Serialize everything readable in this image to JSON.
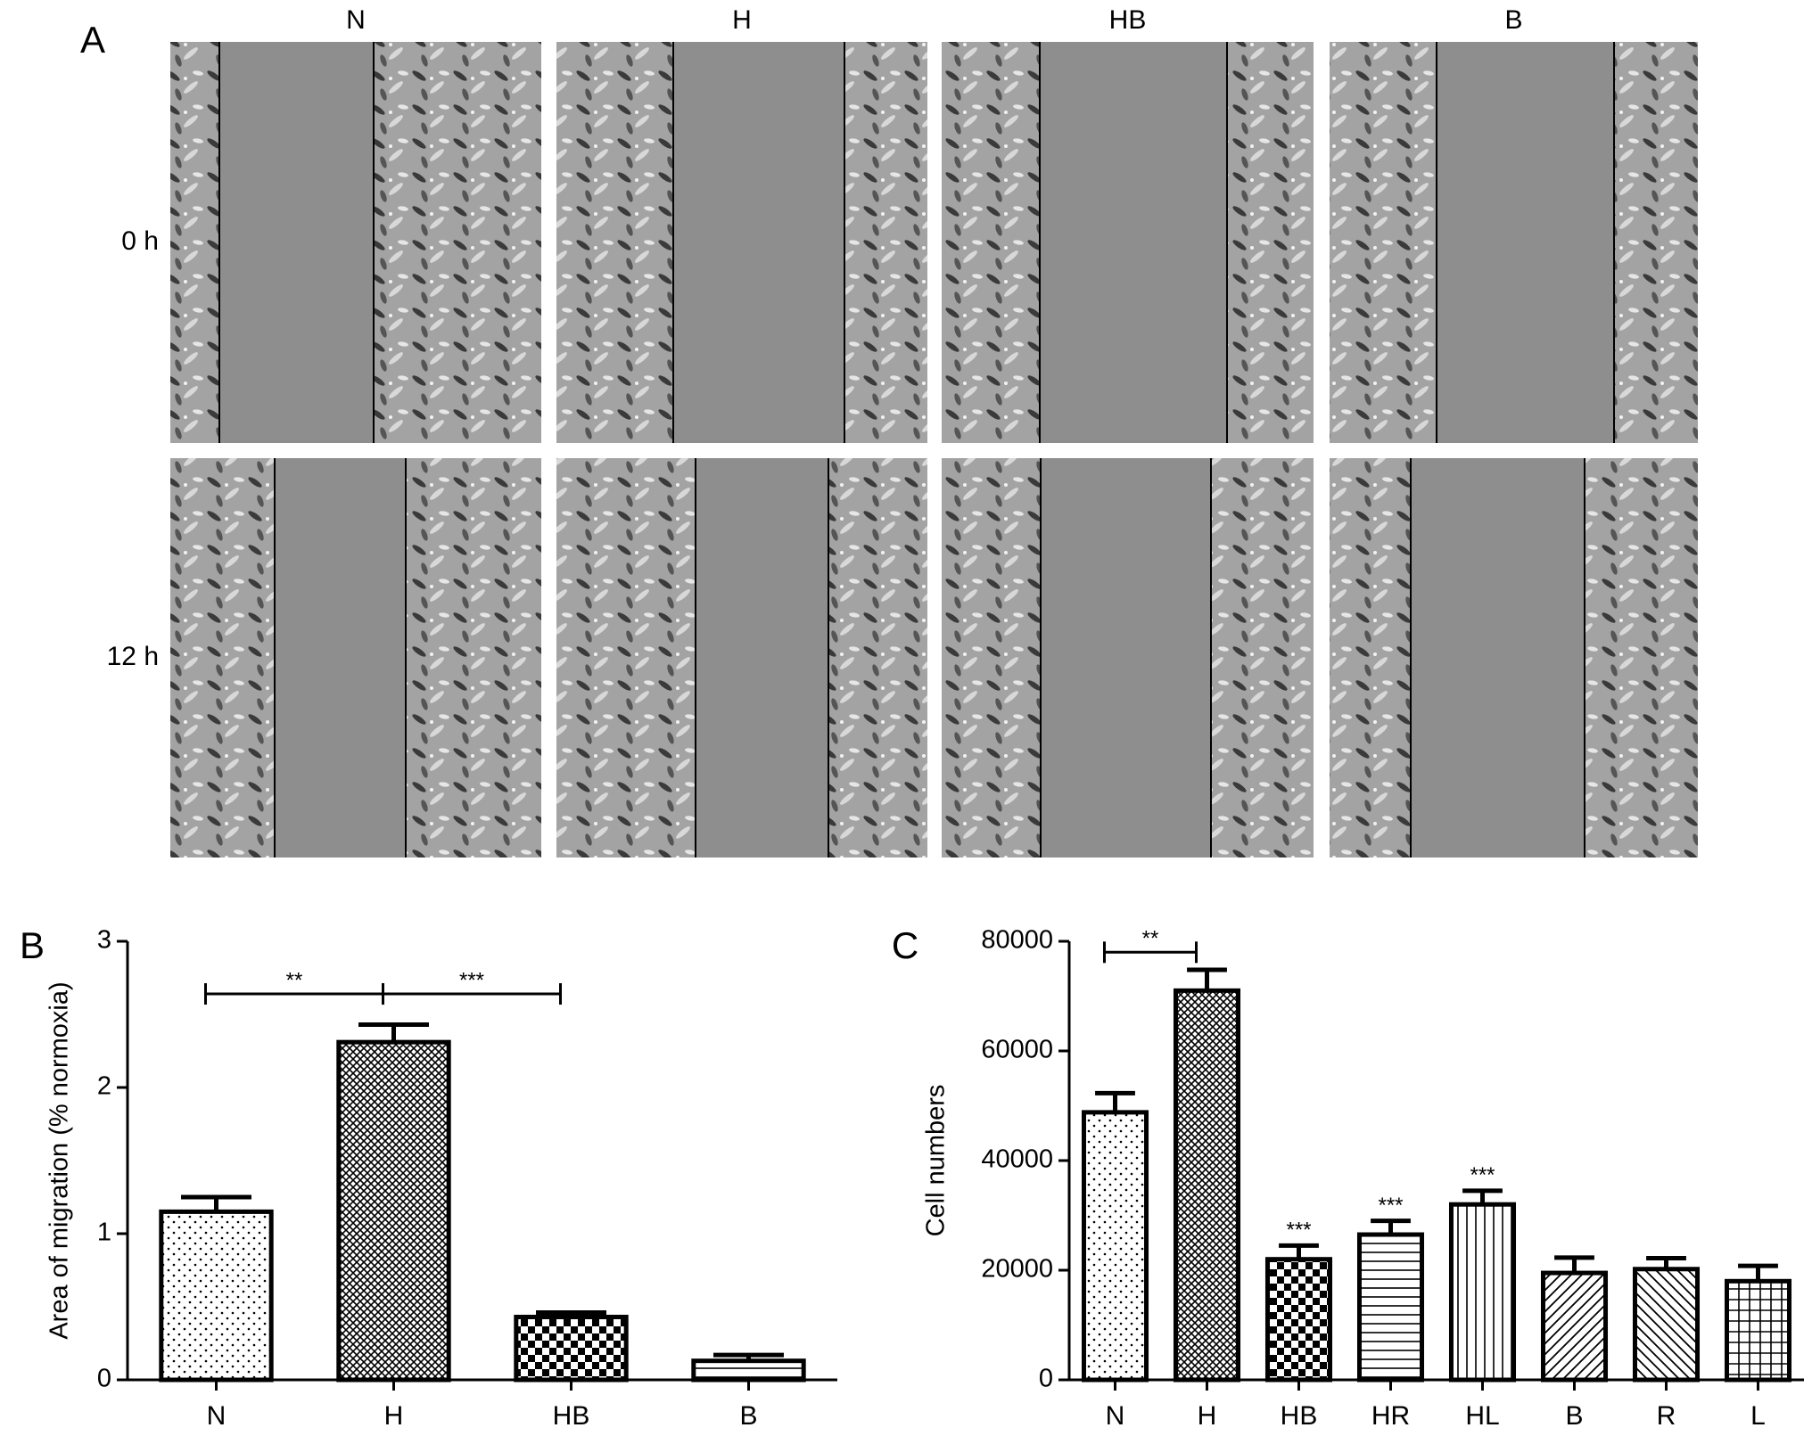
{
  "panel_a": {
    "label": "A",
    "columns": [
      "N",
      "H",
      "HB",
      "B"
    ],
    "rows": [
      "0 h",
      "12 h"
    ]
  },
  "chart_data": [
    {
      "type": "bar",
      "panel_label": "B",
      "ylabel": "Area of migration (% normoxia)",
      "categories": [
        "N",
        "H",
        "HB",
        "B"
      ],
      "values": [
        1.15,
        2.31,
        0.43,
        0.13
      ],
      "errors": [
        0.1,
        0.12,
        0.03,
        0.04
      ],
      "color": "#ffffff",
      "edgecolor": "#000000",
      "ylim": [
        0,
        3
      ],
      "yticks": [
        0,
        1,
        2,
        3
      ],
      "annotations": [
        {
          "label": "**",
          "between": [
            "N",
            "H"
          ],
          "y": 2.64
        },
        {
          "label": "***",
          "between": [
            "H",
            "HB"
          ],
          "y": 2.64
        }
      ]
    },
    {
      "type": "bar",
      "panel_label": "C",
      "ylabel": "Cell numbers",
      "categories": [
        "N",
        "H",
        "HB",
        "HR",
        "HL",
        "B",
        "R",
        "L"
      ],
      "values": [
        48800,
        71000,
        22000,
        26500,
        32000,
        19500,
        20200,
        18000
      ],
      "errors": [
        3500,
        3800,
        2500,
        2500,
        2500,
        2800,
        2000,
        2800
      ],
      "color": "#ffffff",
      "edgecolor": "#000000",
      "ylim": [
        0,
        80000
      ],
      "yticks": [
        0,
        20000,
        40000,
        60000,
        80000
      ],
      "annotations": [
        {
          "label": "**",
          "between": [
            "N",
            "H"
          ],
          "y": 78000
        },
        {
          "label": "***",
          "above": "HB"
        },
        {
          "label": "***",
          "above": "HR"
        },
        {
          "label": "***",
          "above": "HL"
        }
      ]
    }
  ]
}
